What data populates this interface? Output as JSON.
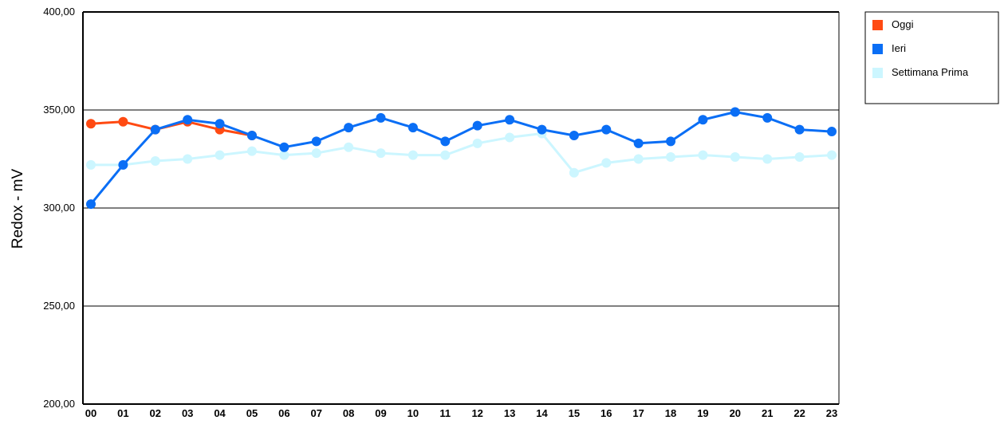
{
  "chart_data": {
    "type": "line",
    "ylabel": "Redox - mV",
    "xlabel": "",
    "ylim": [
      200,
      400
    ],
    "y_ticks": [
      "200,00",
      "250,00",
      "300,00",
      "350,00",
      "400,00"
    ],
    "categories": [
      "00",
      "01",
      "02",
      "03",
      "04",
      "05",
      "06",
      "07",
      "08",
      "09",
      "10",
      "11",
      "12",
      "13",
      "14",
      "15",
      "16",
      "17",
      "18",
      "19",
      "20",
      "21",
      "22",
      "23"
    ],
    "grid": true,
    "legend_position": "top-right",
    "series": [
      {
        "name": "Settimana Prima",
        "color": "#ccf6ff",
        "values": [
          322,
          322,
          324,
          325,
          327,
          329,
          327,
          328,
          331,
          328,
          327,
          327,
          333,
          336,
          338,
          318,
          323,
          325,
          326,
          327,
          326,
          325,
          326,
          327
        ]
      },
      {
        "name": "Oggi",
        "color": "#ff4a12",
        "values": [
          343,
          344,
          340,
          344,
          340,
          337,
          null,
          null,
          null,
          null,
          null,
          null,
          null,
          null,
          null,
          null,
          null,
          null,
          null,
          null,
          null,
          null,
          null,
          null
        ]
      },
      {
        "name": "Ieri",
        "color": "#0a6ef5",
        "values": [
          302,
          322,
          340,
          345,
          343,
          337,
          331,
          334,
          341,
          346,
          341,
          334,
          342,
          345,
          340,
          337,
          340,
          333,
          334,
          345,
          349,
          346,
          340,
          339
        ]
      }
    ],
    "legend_order": [
      "Oggi",
      "Ieri",
      "Settimana Prima"
    ]
  }
}
